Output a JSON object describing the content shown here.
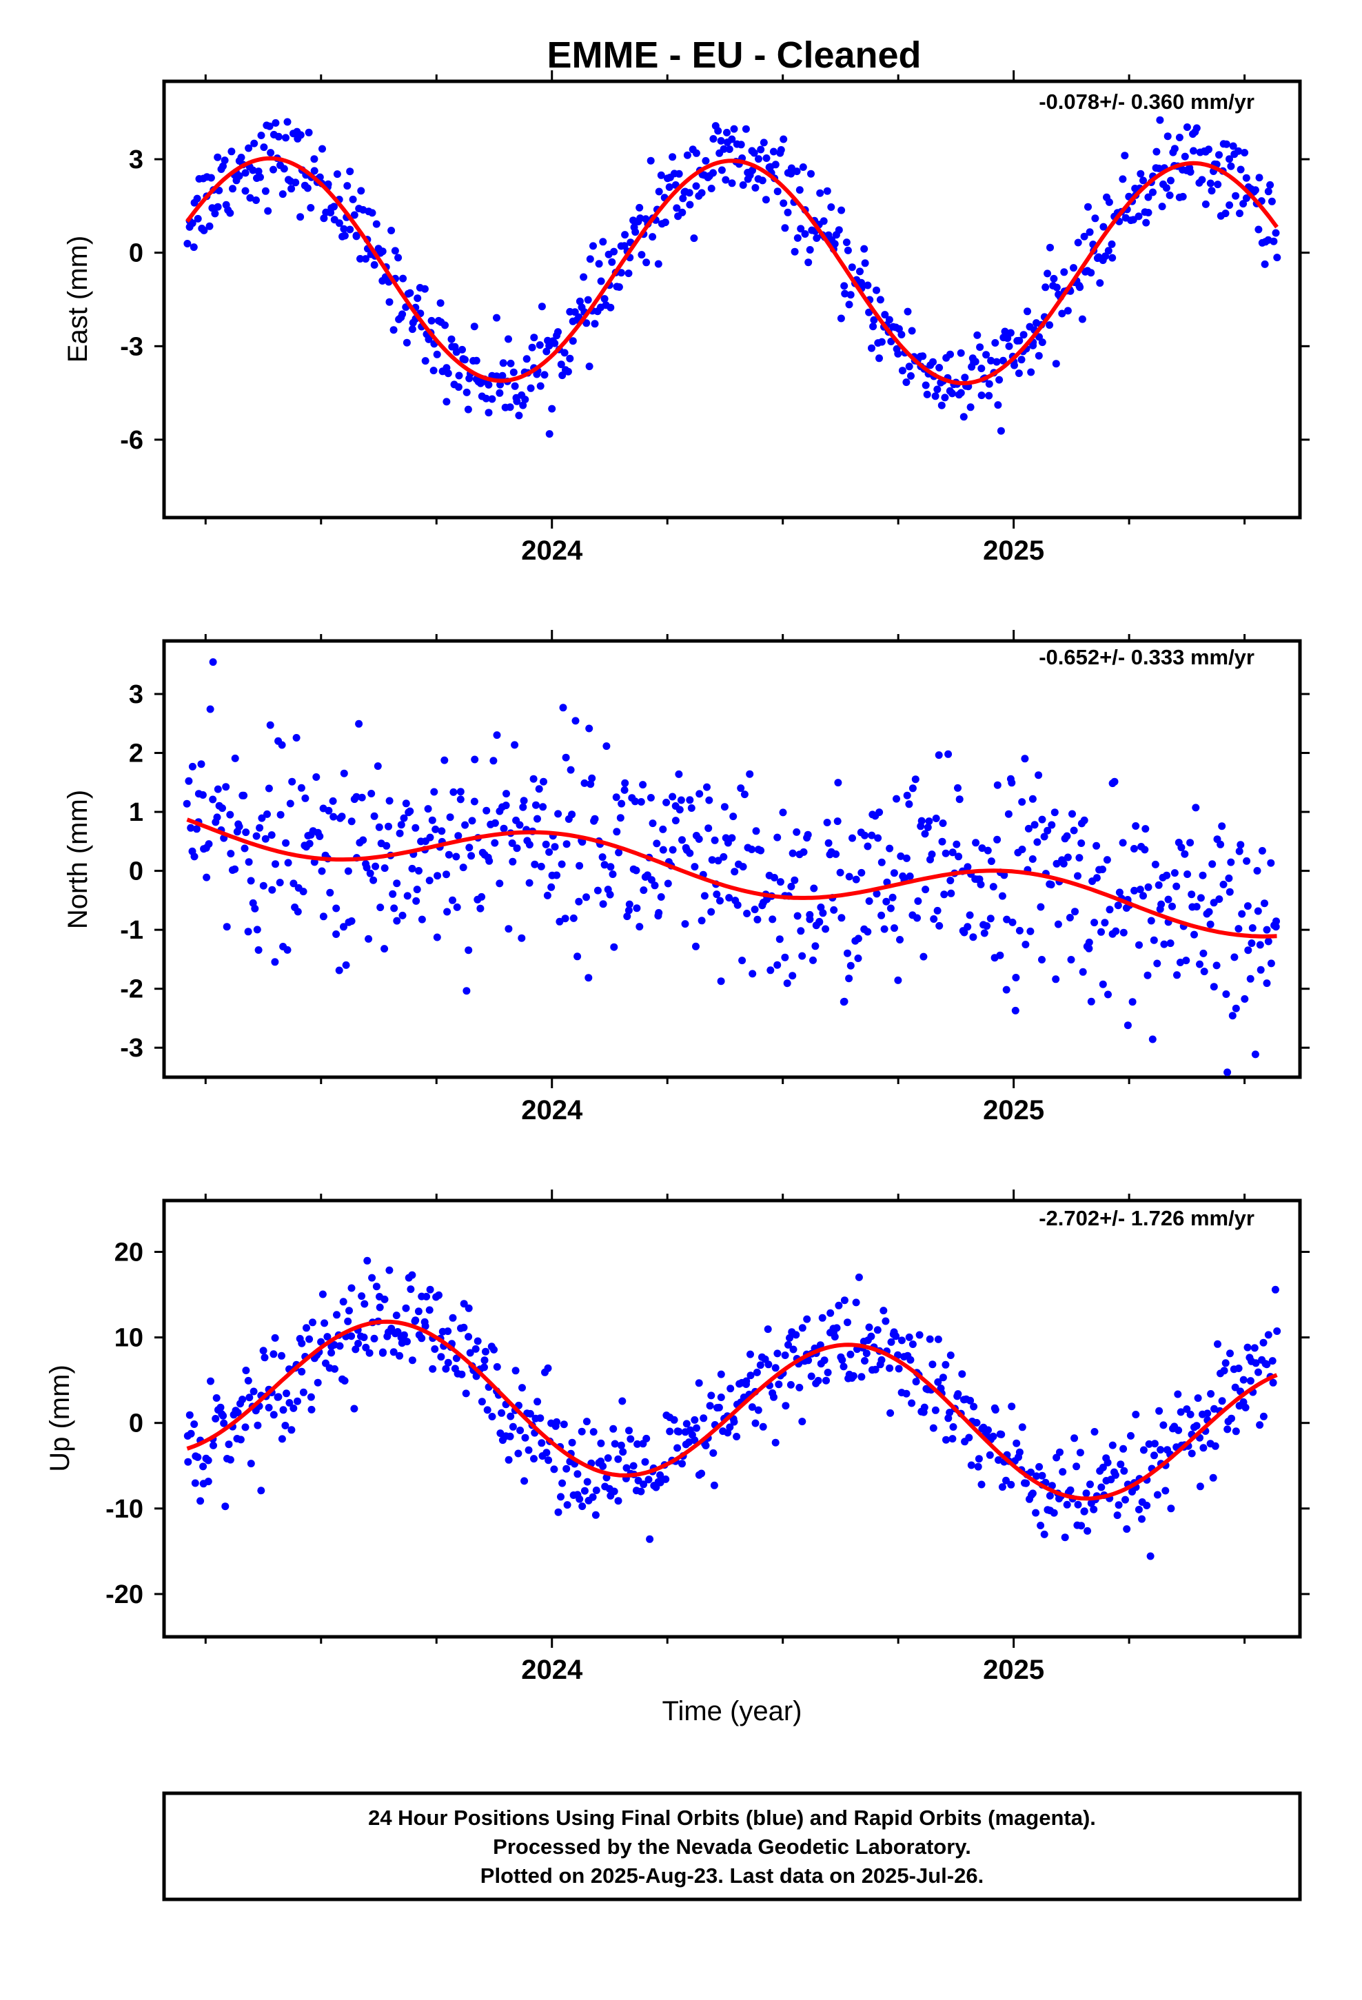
{
  "chart_data": {
    "type": "scatter",
    "title": "EMME  - EU - Cleaned",
    "xlabel": "Time (year)",
    "xlim": [
      2023.16,
      2025.62
    ],
    "xtick_labels": [
      "2024",
      "2025"
    ],
    "point_color": "#0000ff",
    "fit_color": "#ff0000",
    "panels": [
      {
        "ylabel": "East (mm)",
        "ylim": [
          -8.5,
          5.5
        ],
        "yticks": [
          "3",
          "0",
          "-3",
          "-6"
        ],
        "rate_text": "-0.078+/- 0.360 mm/yr",
        "model": {
          "offset": -0.6,
          "slope": -0.078,
          "amp": 3.55,
          "period": 1.0,
          "phase": 2023.14
        },
        "scatter_sd": 0.7
      },
      {
        "ylabel": "North (mm)",
        "ylim": [
          -3.5,
          3.9
        ],
        "yticks": [
          "3",
          "2",
          "1",
          "0",
          "-1",
          "-2",
          "-3"
        ],
        "rate_text": "-0.652+/- 0.333 mm/yr",
        "model": {
          "offset": 0.0,
          "slope": -0.652,
          "amp": 0.38,
          "period": 1.0,
          "phase": 2023.75
        },
        "scatter_sd": 0.9
      },
      {
        "ylabel": "Up (mm)",
        "ylim": [
          -25,
          26
        ],
        "yticks": [
          "20",
          "10",
          "0",
          "-10",
          "-20"
        ],
        "rate_text": "-2.702+/- 1.726 mm/yr",
        "model": {
          "offset": 1.5,
          "slope": -2.702,
          "amp": 8.3,
          "period": 1.0,
          "phase": 2023.4
        },
        "scatter_sd": 3.2
      }
    ]
  },
  "footer": {
    "line1": "24 Hour Positions Using Final Orbits (blue) and Rapid Orbits (magenta).",
    "line2": "Processed by the Nevada Geodetic Laboratory.",
    "line3": "Plotted on 2025-Aug-23. Last data on 2025-Jul-26."
  }
}
